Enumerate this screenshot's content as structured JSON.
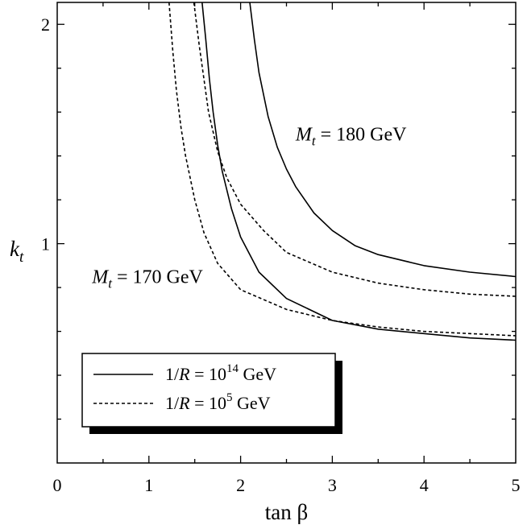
{
  "chart_data": {
    "type": "line",
    "xlabel": "tan β",
    "ylabel": "k",
    "ylabel_sub": "t",
    "xlim": [
      0,
      5
    ],
    "ylim": [
      0,
      2.1
    ],
    "x_ticks": [
      {
        "value": 0,
        "label": "0"
      },
      {
        "value": 1,
        "label": "1"
      },
      {
        "value": 2,
        "label": "2"
      },
      {
        "value": 3,
        "label": "3"
      },
      {
        "value": 4,
        "label": "4"
      },
      {
        "value": 5,
        "label": "5"
      }
    ],
    "y_ticks": [
      {
        "value": 1,
        "label": "1"
      },
      {
        "value": 2,
        "label": "2"
      }
    ],
    "annotations": [
      {
        "id": "mt180",
        "main": "M",
        "sub": "t",
        "rest": " = 180 GeV",
        "x": 2.6,
        "y": 1.47
      },
      {
        "id": "mt170",
        "main": "M",
        "sub": "t",
        "rest": " = 170 GeV",
        "x": 0.38,
        "y": 0.82
      }
    ],
    "legend": {
      "position": "lower-left",
      "entries": [
        {
          "style": "solid",
          "prefix": "1/",
          "italic": "R",
          "mid": " = 10",
          "sup": "14",
          "suffix": " GeV"
        },
        {
          "style": "dashed",
          "prefix": "1/",
          "italic": "R",
          "mid": " = 10",
          "sup": "5",
          "suffix": " GeV"
        }
      ]
    },
    "series": [
      {
        "style": "solid",
        "points": [
          [
            2.1,
            2.1
          ],
          [
            2.15,
            1.93
          ],
          [
            2.2,
            1.78
          ],
          [
            2.3,
            1.58
          ],
          [
            2.4,
            1.44
          ],
          [
            2.5,
            1.34
          ],
          [
            2.6,
            1.26
          ],
          [
            2.8,
            1.14
          ],
          [
            3.0,
            1.06
          ],
          [
            3.25,
            0.99
          ],
          [
            3.5,
            0.95
          ],
          [
            4.0,
            0.9
          ],
          [
            4.5,
            0.87
          ],
          [
            5.0,
            0.85
          ]
        ]
      },
      {
        "style": "solid",
        "points": [
          [
            1.58,
            2.1
          ],
          [
            1.62,
            1.93
          ],
          [
            1.66,
            1.75
          ],
          [
            1.7,
            1.6
          ],
          [
            1.75,
            1.45
          ],
          [
            1.8,
            1.33
          ],
          [
            1.9,
            1.16
          ],
          [
            2.0,
            1.03
          ],
          [
            2.2,
            0.87
          ],
          [
            2.5,
            0.75
          ],
          [
            3.0,
            0.65
          ],
          [
            3.5,
            0.61
          ],
          [
            4.0,
            0.59
          ],
          [
            4.5,
            0.57
          ],
          [
            5.0,
            0.56
          ]
        ]
      },
      {
        "style": "dashed",
        "points": [
          [
            1.49,
            2.1
          ],
          [
            1.55,
            1.9
          ],
          [
            1.6,
            1.75
          ],
          [
            1.65,
            1.6
          ],
          [
            1.75,
            1.42
          ],
          [
            1.85,
            1.3
          ],
          [
            2.0,
            1.18
          ],
          [
            2.25,
            1.06
          ],
          [
            2.5,
            0.96
          ],
          [
            3.0,
            0.87
          ],
          [
            3.5,
            0.82
          ],
          [
            4.0,
            0.79
          ],
          [
            4.5,
            0.77
          ],
          [
            5.0,
            0.76
          ]
        ]
      },
      {
        "style": "dashed",
        "points": [
          [
            1.22,
            2.1
          ],
          [
            1.26,
            1.88
          ],
          [
            1.3,
            1.7
          ],
          [
            1.35,
            1.53
          ],
          [
            1.4,
            1.4
          ],
          [
            1.5,
            1.2
          ],
          [
            1.6,
            1.05
          ],
          [
            1.75,
            0.91
          ],
          [
            2.0,
            0.79
          ],
          [
            2.5,
            0.7
          ],
          [
            3.0,
            0.65
          ],
          [
            3.5,
            0.62
          ],
          [
            4.0,
            0.6
          ],
          [
            4.5,
            0.59
          ],
          [
            5.0,
            0.58
          ]
        ]
      }
    ]
  }
}
